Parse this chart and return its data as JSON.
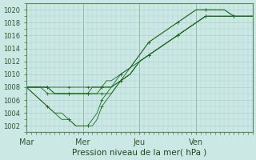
{
  "xlabel": "Pression niveau de la mer( hPa )",
  "background_color": "#cce8e4",
  "grid_color": "#aad0cc",
  "line_color": "#1a6b1a",
  "ylim": [
    1001,
    1021
  ],
  "xlim": [
    0,
    192
  ],
  "yticks": [
    1002,
    1004,
    1006,
    1008,
    1010,
    1012,
    1014,
    1016,
    1018,
    1020
  ],
  "xtick_labels": [
    "Mar",
    "Mer",
    "Jeu",
    "Ven"
  ],
  "xtick_positions": [
    0,
    48,
    96,
    144
  ],
  "series": [
    {
      "x": [
        0,
        6,
        12,
        18,
        24,
        30,
        36,
        42,
        48,
        52,
        56,
        60,
        64,
        68,
        72,
        80,
        88,
        96,
        104,
        112,
        120,
        128,
        136,
        144,
        152,
        160,
        168,
        176,
        184,
        192
      ],
      "y": [
        1008,
        1007,
        1006,
        1005,
        1004,
        1004,
        1003,
        1002,
        1002,
        1002,
        1002,
        1003,
        1005,
        1006,
        1007,
        1009,
        1011,
        1013,
        1015,
        1016,
        1017,
        1018,
        1019,
        1020,
        1020,
        1020,
        1020,
        1019,
        1019,
        1019
      ]
    },
    {
      "x": [
        0,
        6,
        12,
        18,
        24,
        30,
        36,
        42,
        48,
        52,
        56,
        60,
        64,
        68,
        72,
        80,
        88,
        96,
        104,
        112,
        120,
        128,
        136,
        144,
        152,
        160,
        168,
        176,
        184,
        192
      ],
      "y": [
        1008,
        1007,
        1006,
        1005,
        1004,
        1003,
        1003,
        1002,
        1002,
        1002,
        1003,
        1004,
        1006,
        1007,
        1008,
        1010,
        1011,
        1013,
        1015,
        1016,
        1017,
        1018,
        1019,
        1020,
        1020,
        1020,
        1020,
        1019,
        1019,
        1019
      ]
    },
    {
      "x": [
        0,
        6,
        12,
        18,
        24,
        30,
        36,
        42,
        48,
        52,
        56,
        60,
        64,
        68,
        72,
        80,
        88,
        96,
        104,
        112,
        120,
        128,
        136,
        144,
        152,
        160,
        168,
        176,
        184,
        192
      ],
      "y": [
        1008,
        1008,
        1008,
        1007,
        1007,
        1007,
        1007,
        1007,
        1007,
        1007,
        1007,
        1007,
        1007,
        1007,
        1007,
        1009,
        1010,
        1012,
        1013,
        1014,
        1015,
        1016,
        1017,
        1018,
        1019,
        1019,
        1019,
        1019,
        1019,
        1019
      ]
    },
    {
      "x": [
        0,
        6,
        12,
        18,
        24,
        30,
        36,
        42,
        48,
        52,
        56,
        60,
        64,
        68,
        72,
        80,
        88,
        96,
        104,
        112,
        120,
        128,
        136,
        144,
        152,
        160,
        168,
        176,
        184,
        192
      ],
      "y": [
        1008,
        1008,
        1008,
        1008,
        1007,
        1007,
        1007,
        1007,
        1007,
        1007,
        1007,
        1007,
        1008,
        1008,
        1008,
        1009,
        1010,
        1012,
        1013,
        1014,
        1015,
        1016,
        1017,
        1018,
        1019,
        1019,
        1019,
        1019,
        1019,
        1019
      ]
    },
    {
      "x": [
        0,
        6,
        12,
        18,
        24,
        30,
        36,
        42,
        48,
        52,
        56,
        60,
        64,
        68,
        72,
        80,
        88,
        96,
        104,
        112,
        120,
        128,
        136,
        144,
        152,
        160,
        168,
        176,
        184,
        192
      ],
      "y": [
        1008,
        1008,
        1008,
        1008,
        1007,
        1007,
        1007,
        1007,
        1007,
        1007,
        1008,
        1008,
        1008,
        1008,
        1008,
        1009,
        1010,
        1012,
        1013,
        1014,
        1015,
        1016,
        1017,
        1018,
        1019,
        1019,
        1019,
        1019,
        1019,
        1019
      ]
    },
    {
      "x": [
        0,
        6,
        12,
        18,
        24,
        30,
        36,
        42,
        48,
        52,
        56,
        60,
        64,
        68,
        72,
        80,
        88,
        96,
        104,
        112,
        120,
        128,
        136,
        144,
        152,
        160,
        168,
        176,
        184,
        192
      ],
      "y": [
        1008,
        1008,
        1008,
        1008,
        1008,
        1008,
        1008,
        1008,
        1008,
        1008,
        1008,
        1008,
        1008,
        1009,
        1009,
        1010,
        1011,
        1012,
        1013,
        1014,
        1015,
        1016,
        1017,
        1018,
        1019,
        1019,
        1019,
        1019,
        1019,
        1019
      ]
    }
  ],
  "xlabel_fontsize": 7.5,
  "xlabel_color": "#1a4a1a",
  "tick_label_color": "#2d5a2d",
  "ytick_fontsize": 6,
  "xtick_fontsize": 7
}
